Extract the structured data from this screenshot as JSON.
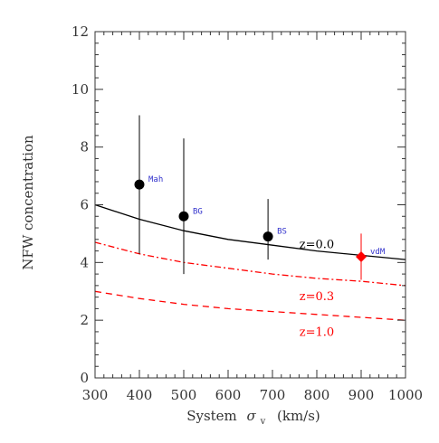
{
  "chart_data": {
    "type": "scatter",
    "xlabel": "System",
    "xlabel_symbol": "σ",
    "xlabel_subscript": "v",
    "xlabel_units": "(km/s)",
    "ylabel": "NFW concentration",
    "xlim": [
      300,
      1000
    ],
    "ylim": [
      0,
      12
    ],
    "x_ticks": [
      300,
      400,
      500,
      600,
      700,
      800,
      900,
      1000
    ],
    "y_ticks": [
      0,
      2,
      4,
      6,
      8,
      10,
      12
    ],
    "grid": false,
    "points": [
      {
        "label": "Mah",
        "x": 400,
        "y": 6.7,
        "y_low": 4.3,
        "y_high": 9.1,
        "color": "#000000",
        "marker": "circle",
        "label_color": "#3333cc"
      },
      {
        "label": "BG",
        "x": 500,
        "y": 5.6,
        "y_low": 3.6,
        "y_high": 8.3,
        "color": "#000000",
        "marker": "circle",
        "label_color": "#3333cc"
      },
      {
        "label": "BS",
        "x": 690,
        "y": 4.9,
        "y_low": 4.1,
        "y_high": 6.2,
        "color": "#000000",
        "marker": "circle",
        "label_color": "#3333cc"
      },
      {
        "label": "vdM",
        "x": 900,
        "y": 4.2,
        "y_low": 3.4,
        "y_high": 5.0,
        "color": "#ff0000",
        "marker": "diamond",
        "label_color": "#3333cc"
      }
    ],
    "series": [
      {
        "name": "z=0.0",
        "color": "#000000",
        "style": "solid",
        "x": [
          300,
          400,
          500,
          600,
          700,
          800,
          900,
          1000
        ],
        "values": [
          6.0,
          5.5,
          5.1,
          4.8,
          4.6,
          4.4,
          4.25,
          4.1
        ]
      },
      {
        "name": "z=0.3",
        "color": "#ff0000",
        "style": "dash-dot",
        "x": [
          300,
          400,
          500,
          600,
          700,
          800,
          900,
          1000
        ],
        "values": [
          4.7,
          4.3,
          4.0,
          3.8,
          3.6,
          3.45,
          3.35,
          3.2
        ]
      },
      {
        "name": "z=1.0",
        "color": "#ff0000",
        "style": "dashed",
        "x": [
          300,
          400,
          500,
          600,
          700,
          800,
          900,
          1000
        ],
        "values": [
          3.0,
          2.75,
          2.55,
          2.4,
          2.3,
          2.2,
          2.1,
          2.0
        ]
      }
    ],
    "curve_labels": [
      {
        "text": "z=0.0",
        "x": 800,
        "y": 4.5,
        "color": "#000000"
      },
      {
        "text": "z=0.3",
        "x": 800,
        "y": 2.7,
        "color": "#ff0000"
      },
      {
        "text": "z=1.0",
        "x": 800,
        "y": 1.45,
        "color": "#ff0000"
      }
    ]
  }
}
